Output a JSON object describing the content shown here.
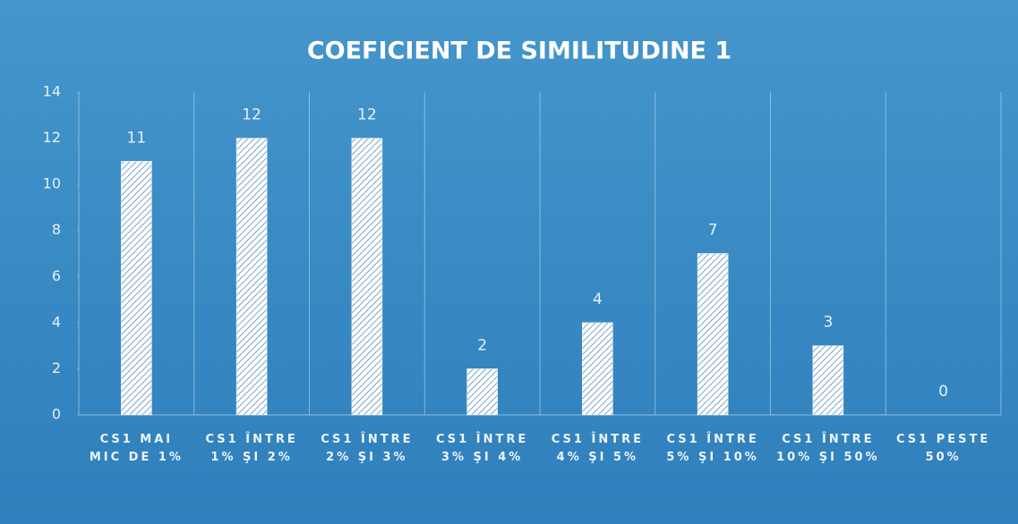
{
  "chart_data": {
    "type": "bar",
    "title": "COEFICIENT DE SIMILITUDINE 1",
    "categories": [
      "CS1 MAI MIC DE 1%",
      "CS1 ÎNTRE 1% ŞI 2%",
      "CS1 ÎNTRE 2% ŞI 3%",
      "CS1 ÎNTRE 3% ŞI 4%",
      "CS1 ÎNTRE 4% ŞI 5%",
      "CS1 ÎNTRE 5% ŞI 10%",
      "CS1 ÎNTRE 10% ŞI 50%",
      "CS1 PESTE 50%"
    ],
    "values": [
      11,
      12,
      12,
      2,
      4,
      7,
      3,
      0
    ],
    "color": "#ffffff",
    "ylim": [
      0,
      14
    ],
    "yticks": [
      0,
      2,
      4,
      6,
      8,
      10,
      12,
      14
    ]
  }
}
